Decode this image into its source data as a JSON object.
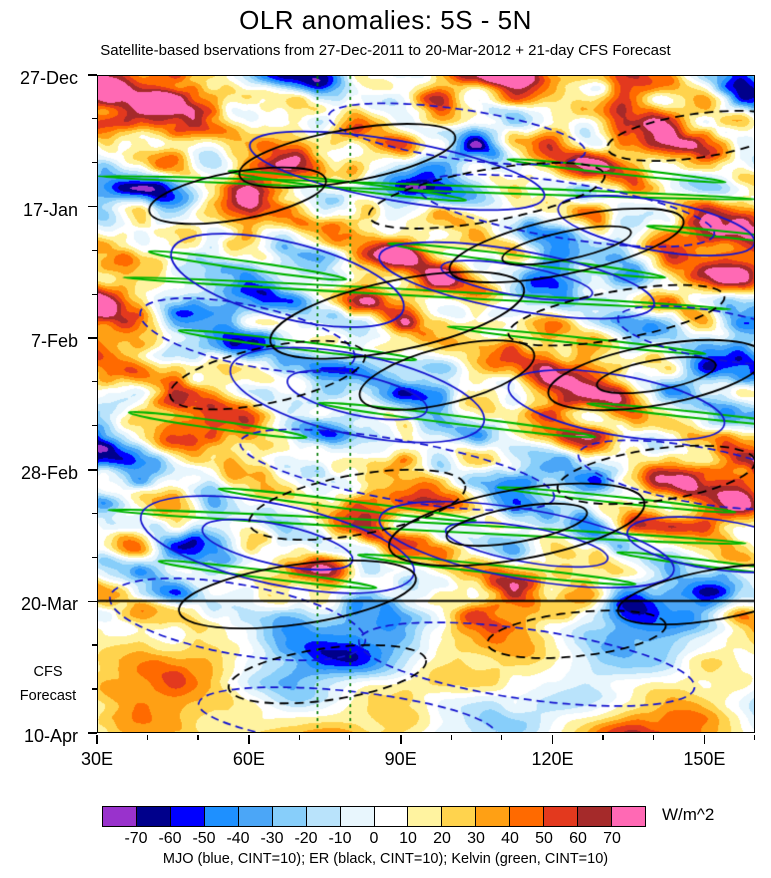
{
  "header": {
    "title": "OLR anomalies: 5S - 5N",
    "subtitle": "Satellite-based bservations from 27-Dec-2011 to 20-Mar-2012 + 21-day CFS Forecast"
  },
  "chart_data": {
    "type": "heatmap",
    "variant": "hovmoller-time-longitude",
    "title": "OLR anomalies: 5S - 5N",
    "subtitle": "Satellite-based bservations from 27-Dec-2011 to 20-Mar-2012 + 21-day CFS Forecast",
    "description": "Filled-contour OLR anomaly field (W/m^2) vs longitude (30E-160E) and time (27-Dec-2011 to 10-Apr-2012, downward), with overlaid wave contours: MJO (blue), ER (black), Kelvin (green); solid black horizontal line marks 20-Mar forecast start; two dashed green vertical lines near 73E-80E.",
    "units": "W/m^2",
    "grid": false,
    "x_axis": {
      "tick_labels": [
        "30E",
        "60E",
        "90E",
        "120E",
        "150E"
      ],
      "range_deg_east": [
        30,
        160
      ],
      "major_tick_deg": 30,
      "minor_tick_deg": 10
    },
    "y_axis": {
      "tick_labels": [
        "27-Dec",
        "17-Jan",
        "7-Feb",
        "28-Feb",
        "20-Mar",
        "10-Apr"
      ],
      "direction": "time increases downward",
      "major_tick_days": 21,
      "minor_tick_days": 7
    },
    "colorbar": {
      "levels": [
        -70,
        -60,
        -50,
        -40,
        -30,
        -20,
        -10,
        0,
        10,
        20,
        30,
        40,
        50,
        60,
        70
      ],
      "colors": [
        "#9932CC",
        "#00008B",
        "#0000FF",
        "#1E90FF",
        "#4BA6F7",
        "#87CEFA",
        "#B9E3FB",
        "#E8F6FD",
        "#FFFFFF",
        "#FFF3A0",
        "#FFD34D",
        "#FFA014",
        "#FF6A00",
        "#E3391E",
        "#A52A2A",
        "#FF69B4"
      ],
      "units": "W/m^2"
    },
    "overlays": {
      "mjo": {
        "color": "#1515CF",
        "label": "MJO (blue, CINT=10)"
      },
      "er": {
        "color": "#000000",
        "label": "ER (black, CINT=10)"
      },
      "kelvin": {
        "color": "#00B400",
        "label": "Kelvin (green, CINT=10)"
      },
      "vertical_dashed_lines_deg_east": [
        73.5,
        80
      ],
      "vertical_line_color": "#007A00",
      "forecast_line_color": "#000000"
    },
    "forecast": {
      "boundary_date": "20-Mar",
      "label_lines": [
        "CFS",
        "Forecast"
      ]
    }
  },
  "footer": {
    "units_label": "W/m^2",
    "legend": "MJO (blue, CINT=10); ER (black, CINT=10); Kelvin (green, CINT=10)"
  }
}
